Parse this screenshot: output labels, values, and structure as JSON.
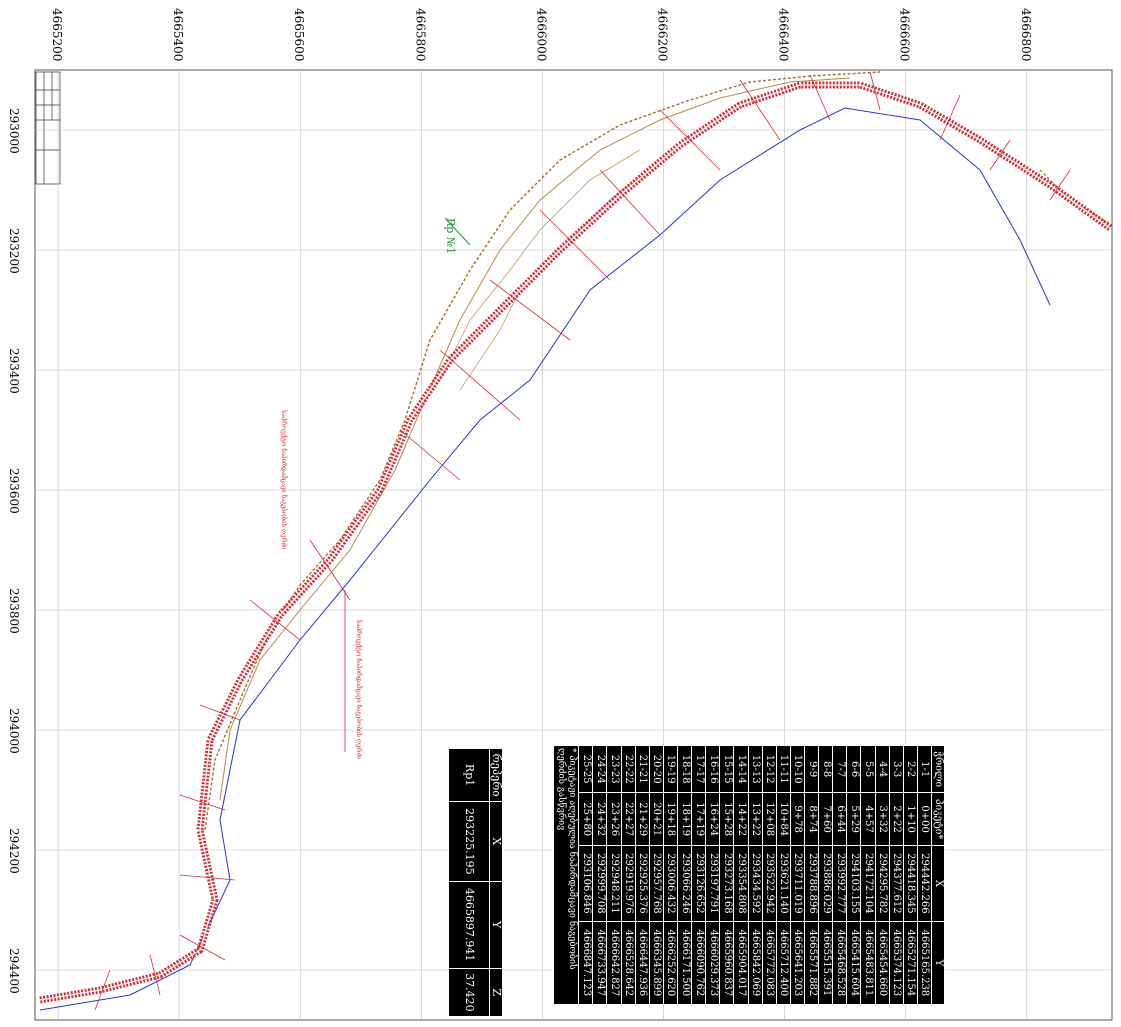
{
  "axes": {
    "top_labels": [
      "4665200",
      "4665400",
      "4665600",
      "4665800",
      "4666000",
      "4666200",
      "4666400",
      "4666600",
      "4666800"
    ],
    "left_labels": [
      "293000",
      "293200",
      "293400",
      "293600",
      "293800",
      "294000",
      "294200",
      "294400"
    ]
  },
  "labels": {
    "benchmark": "Rp №1",
    "axis_note_1": "საპროექტო ნაპირდამცავი ნაგებობის ღერძი",
    "axis_note_2": "საპროექტო ნაპირდამცავი ნაგებობის ღერძი"
  },
  "section_table": {
    "headers": [
      "ჭრილი",
      "პიკეტი*",
      "X",
      "Y"
    ],
    "rows": [
      [
        "1-1",
        "0+00",
        "294442.266",
        "4665165.238"
      ],
      [
        "2-2",
        "1+10",
        "294418.345",
        "4665271.154"
      ],
      [
        "3-3",
        "2+22",
        "294377.612",
        "4665374.123"
      ],
      [
        "4-4",
        "3+32",
        "294295.782",
        "4665454.660"
      ],
      [
        "5-5",
        "4+57",
        "294172.104",
        "4665483.811"
      ],
      [
        "6-6",
        "5+29",
        "294103.155",
        "4665415.604"
      ],
      [
        "7-7",
        "6+44",
        "293992.777",
        "4665468.528"
      ],
      [
        "8-8",
        "7+60",
        "293886.029",
        "4665515.391"
      ],
      [
        "9-9",
        "8+74",
        "293788.896",
        "4665571.882"
      ],
      [
        "10-10",
        "9+78",
        "293711.019",
        "4665641.203"
      ],
      [
        "11-11",
        "10+84",
        "293621.140",
        "4665712.400"
      ],
      [
        "12-12",
        "12+08",
        "293522.942",
        "4665772.083"
      ],
      [
        "13-13",
        "13+22",
        "293434.592",
        "4665842.069"
      ],
      [
        "14-14",
        "14+22",
        "293354.808",
        "4665904.017"
      ],
      [
        "15-15",
        "15+28",
        "293273.168",
        "4665960.837"
      ],
      [
        "16-16",
        "16+24",
        "293197.791",
        "4666029.373"
      ],
      [
        "17-17",
        "17+19",
        "293126.652",
        "4666090.762"
      ],
      [
        "18-18",
        "18+19",
        "293066.246",
        "4666171.500"
      ],
      [
        "19-19",
        "19+18",
        "293006.432",
        "4666252.620"
      ],
      [
        "20-20",
        "20+21",
        "292957.768",
        "4666345.899"
      ],
      [
        "21-21",
        "21+29",
        "292925.376",
        "4666447.936"
      ],
      [
        "22-22",
        "22+27",
        "292919.976",
        "4666528.642"
      ],
      [
        "23-23",
        "23+26",
        "292948.211",
        "4666642.827"
      ],
      [
        "24-24",
        "24+32",
        "292999.708",
        "4666733.947"
      ],
      [
        "25-25",
        "25+80",
        "293106.846",
        "4666847.123"
      ]
    ],
    "footnote": "* პიკეტაჟი აღებულია ნაპირდამცავი ნაგებობის ღერძის გასწვრივ"
  },
  "benchmark_table": {
    "headers": [
      "რეპერი",
      "X",
      "Y",
      "Z"
    ],
    "rows": [
      [
        "Rp1",
        "293225.195",
        "4665897.941",
        "37.420"
      ]
    ]
  }
}
